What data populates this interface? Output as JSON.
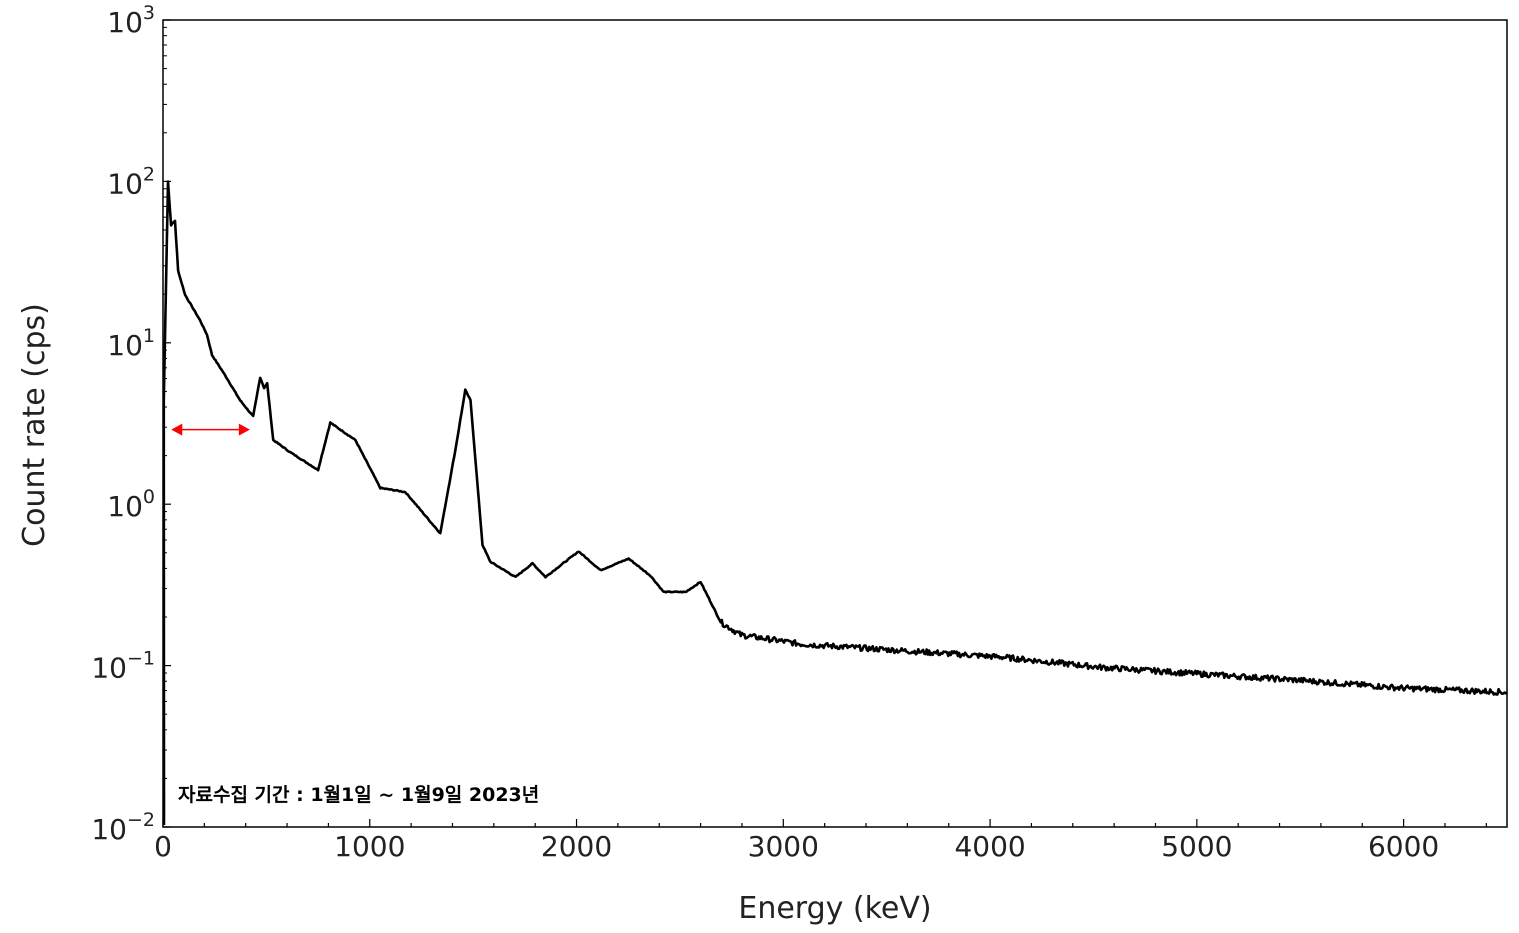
{
  "chart_data": {
    "type": "line",
    "title": "",
    "xlabel": "Energy (keV)",
    "ylabel": "Count rate (cps)",
    "xlim": [
      0,
      6500
    ],
    "ylim": [
      0.01,
      1000
    ],
    "yscale": "log",
    "grid": false,
    "x_ticks": [
      0,
      1000,
      2000,
      3000,
      4000,
      5000,
      6000
    ],
    "x_tick_labels": [
      "0",
      "1000",
      "2000",
      "3000",
      "4000",
      "5000",
      "6000"
    ],
    "y_ticks": [
      0.01,
      0.1,
      1,
      10,
      100,
      1000
    ],
    "y_tick_labels": [
      {
        "base": "10",
        "exp": "−2"
      },
      {
        "base": "10",
        "exp": "−1"
      },
      {
        "base": "10",
        "exp": "0"
      },
      {
        "base": "10",
        "exp": "1"
      },
      {
        "base": "10",
        "exp": "2"
      },
      {
        "base": "10",
        "exp": "3"
      }
    ],
    "series": [
      {
        "name": "spectrum",
        "color": "#000000",
        "x": [
          4,
          24,
          39,
          58,
          73,
          107,
          179,
          213,
          237,
          300,
          373,
          436,
          470,
          489,
          504,
          533,
          615,
          750,
          809,
          930,
          1051,
          1172,
          1341,
          1414,
          1462,
          1487,
          1545,
          1583,
          1705,
          1787,
          1850,
          2010,
          2116,
          2252,
          2358,
          2421,
          2528,
          2600,
          2697,
          2794,
          3085,
          4053,
          4538,
          5022,
          5506,
          5990,
          6500
        ],
        "y": [
          4.4,
          100,
          53.7,
          57,
          28,
          19.8,
          13.8,
          11.2,
          8.4,
          6.3,
          4.4,
          3.5,
          6.1,
          5.25,
          5.6,
          2.5,
          2.1,
          1.63,
          3.2,
          2.5,
          1.26,
          1.19,
          0.66,
          2.17,
          5.1,
          4.4,
          0.56,
          0.44,
          0.354,
          0.43,
          0.354,
          0.51,
          0.39,
          0.46,
          0.36,
          0.286,
          0.286,
          0.33,
          0.186,
          0.155,
          0.136,
          0.113,
          0.0975,
          0.0887,
          0.081,
          0.0726,
          0.0684
        ]
      }
    ],
    "annotations": [
      {
        "text": "자료수집 기간 : 1월1일 ~ 1월9일 2023년"
      },
      {
        "type": "double-arrow",
        "color": "#ff0000",
        "x_range": [
          40,
          420
        ],
        "y": 2.9
      }
    ]
  }
}
